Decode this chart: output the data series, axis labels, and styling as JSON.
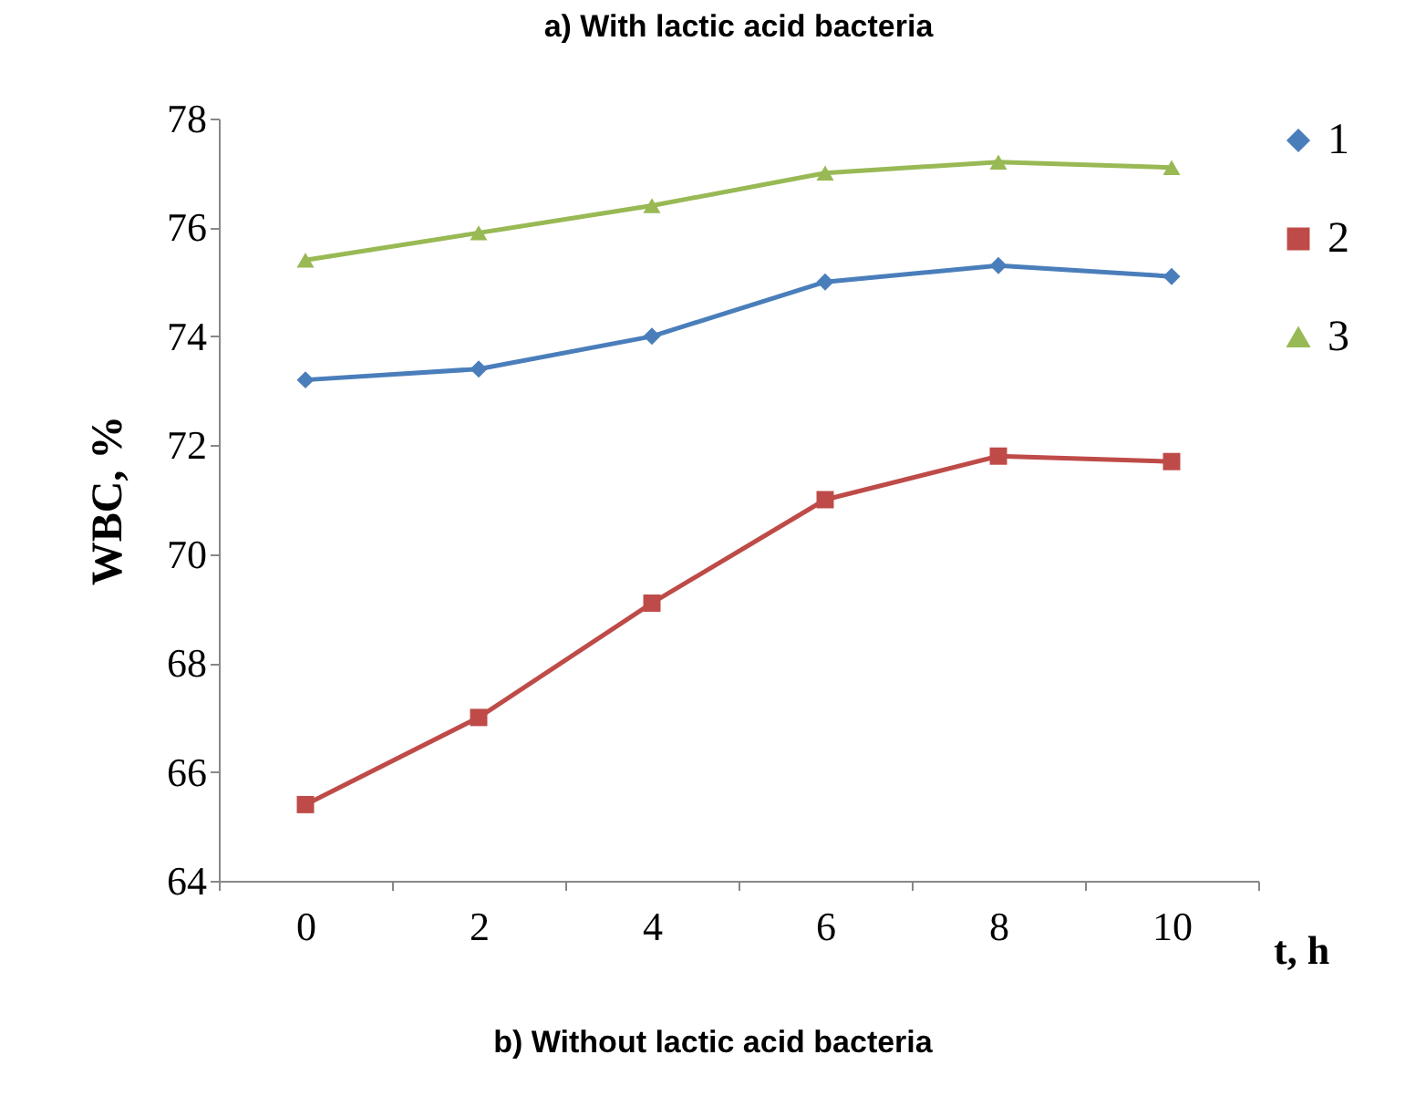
{
  "chart_data": {
    "type": "line",
    "title": "a) With lactic acid bacteria",
    "xlabel": "t, h",
    "ylabel": "WBC, %",
    "categories": [
      "0",
      "2",
      "4",
      "6",
      "8",
      "10"
    ],
    "series": [
      {
        "name": "1",
        "color": "#4a7ebb",
        "marker": "diamond",
        "values": [
          73.2,
          73.4,
          74.0,
          75.0,
          75.3,
          75.1
        ]
      },
      {
        "name": "2",
        "color": "#be4b48",
        "marker": "square",
        "values": [
          65.4,
          67.0,
          69.1,
          71.0,
          71.8,
          71.7
        ]
      },
      {
        "name": "3",
        "color": "#98b954",
        "marker": "triangle",
        "values": [
          75.4,
          75.9,
          76.4,
          77.0,
          77.2,
          77.1
        ]
      }
    ],
    "ylim": [
      64,
      78
    ],
    "yticks": [
      64,
      66,
      68,
      70,
      72,
      74,
      76,
      78
    ],
    "grid": false,
    "legend": "right",
    "line_style": "solid",
    "annotations": [
      "b) Without lactic acid bacteria"
    ]
  }
}
